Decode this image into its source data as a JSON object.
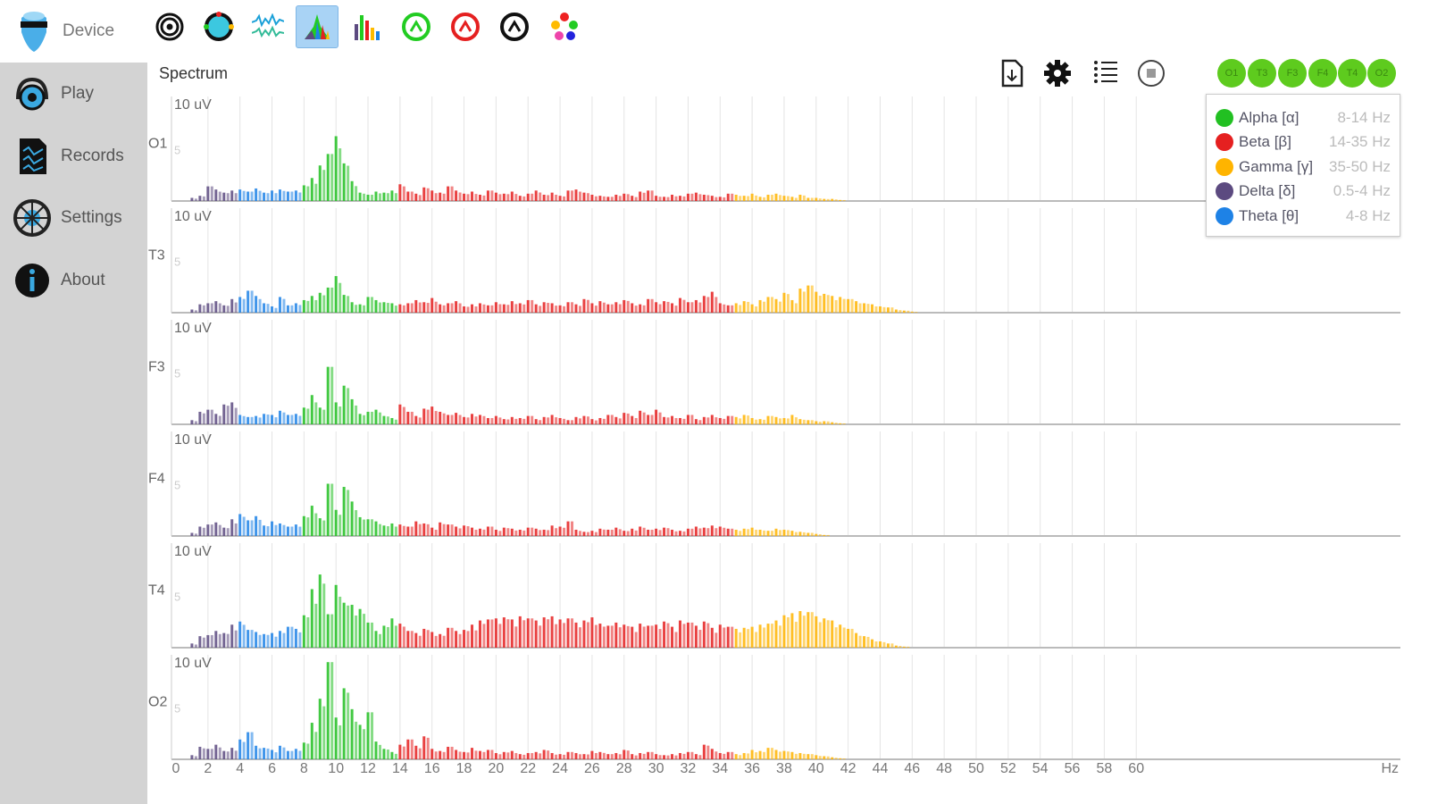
{
  "sidebar": {
    "device": "Device",
    "items": [
      {
        "label": "Play"
      },
      {
        "label": "Records"
      },
      {
        "label": "Settings"
      },
      {
        "label": "About"
      }
    ]
  },
  "toolbar": {
    "icons": [
      "spiral-icon",
      "color-wheel-icon",
      "waveform-icon",
      "spectrum-icon",
      "bar-chart-icon",
      "green-gauge-icon",
      "red-gauge-icon",
      "black-gauge-icon",
      "color-dots-icon"
    ],
    "active": "spectrum-icon"
  },
  "panel_title": "Spectrum",
  "channels_buttons": [
    "O1",
    "T3",
    "F3",
    "F4",
    "T4",
    "O2"
  ],
  "legend": [
    {
      "name": "Alpha [α]",
      "range": "8-14 Hz",
      "color": "#22c022"
    },
    {
      "name": "Beta [β]",
      "range": "14-35 Hz",
      "color": "#e52020"
    },
    {
      "name": "Gamma [γ]",
      "range": "35-50 Hz",
      "color": "#ffb400"
    },
    {
      "name": "Delta [δ]",
      "range": "0.5-4 Hz",
      "color": "#5c4a80"
    },
    {
      "name": "Theta [θ]",
      "range": "4-8 Hz",
      "color": "#1e82e6"
    }
  ],
  "chart_data": {
    "type": "bar",
    "title": "Spectrum",
    "xlabel": "Hz",
    "ylabel": "uV",
    "y_top_label": "10 uV",
    "y_mid_label": "5",
    "ylim": [
      0,
      10
    ],
    "xlim": [
      0,
      76
    ],
    "x_ticks": [
      0,
      2,
      4,
      6,
      8,
      10,
      12,
      14,
      16,
      18,
      20,
      22,
      24,
      26,
      28,
      30,
      32,
      34,
      36,
      38,
      40,
      42,
      44,
      46,
      48,
      50,
      52,
      54,
      56,
      58,
      60
    ],
    "freq_start": 1,
    "freq_step": 0.5,
    "series": [
      {
        "name": "O1",
        "values": [
          0.3,
          0.5,
          1.4,
          1.1,
          0.8,
          1.0,
          1.1,
          0.9,
          1.2,
          0.8,
          1.0,
          1.1,
          0.9,
          1.0,
          1.5,
          2.2,
          3.4,
          4.5,
          6.2,
          3.6,
          1.9,
          0.8,
          0.6,
          0.9,
          0.8,
          1.0,
          1.6,
          0.9,
          0.7,
          1.3,
          1.0,
          0.8,
          1.4,
          1.0,
          0.7,
          0.9,
          0.6,
          1.0,
          0.8,
          0.7,
          0.9,
          0.5,
          0.7,
          1.0,
          0.6,
          0.8,
          0.5,
          1.0,
          1.1,
          0.8,
          0.6,
          0.5,
          0.4,
          0.6,
          0.7,
          0.5,
          0.9,
          1.0,
          0.5,
          0.4,
          0.6,
          0.5,
          0.7,
          0.8,
          0.6,
          0.5,
          0.4,
          0.7,
          0.6,
          0.5,
          0.7,
          0.4,
          0.6,
          0.7,
          0.5,
          0.4,
          0.6,
          0.3,
          0.3,
          0.2,
          0.2,
          0.1
        ]
      },
      {
        "name": "T3",
        "values": [
          0.3,
          0.8,
          0.9,
          1.1,
          0.7,
          1.3,
          1.5,
          2.1,
          1.6,
          0.9,
          0.6,
          1.5,
          0.7,
          0.9,
          1.2,
          1.6,
          1.9,
          2.4,
          3.5,
          1.7,
          1.0,
          0.8,
          1.5,
          1.2,
          1.0,
          0.9,
          0.8,
          0.9,
          1.2,
          1.0,
          1.4,
          0.8,
          0.9,
          1.1,
          0.6,
          0.8,
          0.9,
          0.7,
          1.0,
          0.8,
          1.1,
          0.9,
          1.2,
          0.8,
          1.0,
          0.9,
          0.7,
          1.0,
          0.8,
          1.3,
          0.9,
          1.1,
          0.8,
          1.0,
          1.2,
          0.9,
          0.8,
          1.3,
          1.0,
          1.1,
          0.9,
          1.4,
          1.0,
          1.2,
          1.6,
          2.0,
          0.9,
          0.7,
          0.9,
          1.1,
          0.8,
          1.2,
          1.5,
          1.3,
          1.9,
          1.2,
          2.3,
          2.6,
          2.0,
          1.8,
          1.6,
          1.5,
          1.3,
          1.1,
          0.9,
          0.8,
          0.6,
          0.5,
          0.3,
          0.2,
          0.1
        ]
      },
      {
        "name": "F3",
        "values": [
          0.4,
          1.2,
          1.4,
          1.0,
          1.9,
          2.1,
          0.9,
          0.7,
          0.8,
          1.0,
          0.9,
          1.3,
          0.9,
          1.0,
          1.6,
          2.8,
          1.6,
          5.5,
          2.1,
          3.7,
          2.4,
          1.0,
          1.2,
          1.4,
          0.8,
          0.6,
          1.9,
          1.2,
          0.8,
          1.5,
          1.7,
          1.2,
          0.9,
          1.1,
          0.7,
          1.0,
          0.9,
          0.6,
          0.8,
          0.5,
          0.7,
          0.6,
          0.8,
          0.5,
          0.7,
          0.9,
          0.6,
          0.4,
          0.7,
          0.8,
          0.5,
          0.6,
          0.9,
          0.7,
          1.1,
          0.8,
          1.3,
          0.9,
          1.4,
          0.7,
          0.8,
          0.6,
          0.9,
          0.5,
          0.7,
          0.9,
          0.6,
          0.8,
          0.7,
          0.9,
          0.6,
          0.5,
          0.8,
          0.7,
          0.6,
          0.9,
          0.5,
          0.4,
          0.3,
          0.3,
          0.2,
          0.1
        ]
      },
      {
        "name": "F4",
        "values": [
          0.3,
          0.9,
          1.1,
          1.3,
          0.8,
          1.6,
          2.1,
          1.5,
          1.9,
          1.0,
          1.4,
          1.2,
          0.9,
          1.1,
          1.9,
          2.9,
          1.7,
          5.0,
          2.5,
          4.7,
          3.3,
          1.8,
          1.6,
          1.4,
          1.0,
          1.2,
          1.1,
          0.9,
          1.4,
          1.2,
          0.8,
          1.3,
          1.1,
          0.9,
          1.0,
          0.8,
          0.7,
          0.9,
          0.6,
          0.8,
          0.7,
          0.6,
          0.8,
          0.7,
          0.6,
          1.0,
          0.9,
          1.4,
          0.6,
          0.4,
          0.5,
          0.7,
          0.6,
          0.8,
          0.5,
          0.7,
          0.9,
          0.6,
          0.7,
          0.8,
          0.6,
          0.5,
          0.7,
          0.9,
          0.8,
          1.0,
          0.9,
          0.7,
          0.6,
          0.7,
          0.8,
          0.6,
          0.5,
          0.7,
          0.6,
          0.5,
          0.4,
          0.3,
          0.2,
          0.1
        ]
      },
      {
        "name": "T4",
        "values": [
          0.4,
          1.1,
          1.2,
          1.6,
          1.4,
          2.2,
          2.5,
          1.7,
          1.5,
          1.3,
          1.4,
          1.6,
          2.0,
          1.8,
          3.1,
          5.6,
          7.0,
          3.2,
          6.0,
          4.3,
          4.1,
          3.7,
          2.4,
          1.6,
          2.1,
          2.8,
          2.3,
          1.6,
          1.4,
          1.8,
          1.5,
          1.3,
          1.9,
          1.6,
          1.7,
          2.2,
          2.6,
          2.7,
          2.8,
          2.9,
          2.7,
          3.0,
          2.8,
          2.6,
          2.9,
          3.0,
          2.7,
          2.8,
          2.4,
          2.6,
          2.9,
          2.3,
          2.1,
          2.4,
          2.2,
          2.0,
          2.3,
          2.1,
          2.2,
          2.5,
          2.0,
          2.6,
          2.4,
          2.1,
          2.5,
          1.9,
          2.2,
          2.0,
          1.8,
          1.9,
          2.0,
          2.2,
          2.3,
          2.6,
          3.1,
          3.3,
          3.5,
          3.4,
          3.0,
          2.8,
          2.6,
          2.2,
          1.8,
          1.4,
          1.1,
          0.8,
          0.6,
          0.4,
          0.2,
          0.1
        ]
      },
      {
        "name": "O2",
        "values": [
          0.4,
          1.2,
          1.0,
          1.4,
          0.8,
          1.1,
          1.9,
          2.6,
          1.3,
          1.1,
          0.9,
          1.3,
          0.8,
          1.0,
          1.6,
          3.5,
          5.8,
          9.3,
          4.0,
          6.8,
          4.8,
          3.3,
          4.5,
          1.7,
          1.0,
          0.7,
          1.4,
          1.9,
          1.3,
          2.2,
          1.0,
          0.8,
          1.2,
          0.9,
          0.7,
          1.1,
          0.8,
          0.9,
          0.6,
          0.7,
          0.8,
          0.5,
          0.6,
          0.7,
          0.9,
          0.6,
          0.5,
          0.7,
          0.6,
          0.5,
          0.8,
          0.7,
          0.5,
          0.6,
          0.9,
          0.5,
          0.6,
          0.7,
          0.5,
          0.4,
          0.5,
          0.6,
          0.7,
          0.5,
          1.4,
          1.0,
          0.6,
          0.7,
          0.5,
          0.6,
          0.9,
          0.8,
          1.1,
          0.9,
          0.8,
          0.7,
          0.6,
          0.5,
          0.4,
          0.3,
          0.2,
          0.1
        ]
      }
    ]
  }
}
